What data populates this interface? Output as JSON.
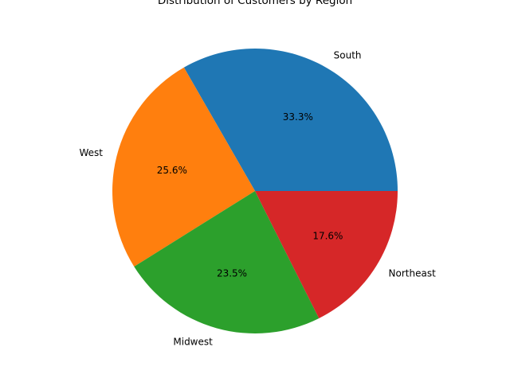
{
  "chart_data": {
    "type": "pie",
    "title": "Distribution of Customers by Region",
    "slices": [
      {
        "label": "South",
        "value": 33.3,
        "pct_label": "33.3%",
        "color": "#1f77b4"
      },
      {
        "label": "West",
        "value": 25.6,
        "pct_label": "25.6%",
        "color": "#ff7f0e"
      },
      {
        "label": "Midwest",
        "value": 23.5,
        "pct_label": "23.5%",
        "color": "#2ca02c"
      },
      {
        "label": "Northeast",
        "value": 17.6,
        "pct_label": "17.6%",
        "color": "#d62728"
      }
    ],
    "start_angle": 0,
    "direction": "counterclockwise"
  }
}
